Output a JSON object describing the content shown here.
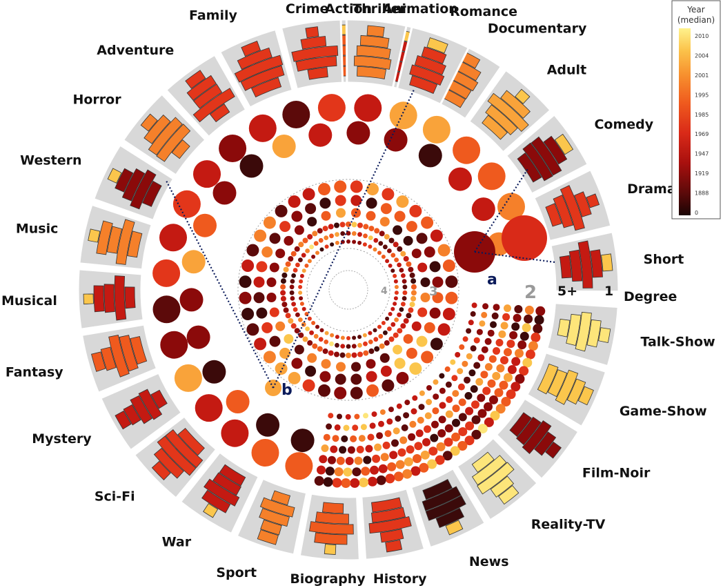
{
  "genres_top": [
    "Action",
    "Animation",
    "Documentary",
    "Adult",
    "Comedy",
    "Drama",
    "Short",
    "Western",
    "Horror",
    "Adventure",
    "Family",
    "Crime",
    "Thriller",
    "Romance"
  ],
  "genres_bottom": [
    "Music",
    "Musical",
    "Fantasy",
    "Mystery",
    "Sci-Fi",
    "War",
    "Sport",
    "Biography",
    "History",
    "News",
    "Reality-TV",
    "Film-Noir",
    "Game-Show",
    "Talk-Show"
  ],
  "degree": {
    "title": "Degree",
    "labels": [
      "5+",
      "1"
    ]
  },
  "rings": [
    "2",
    "3",
    "4"
  ],
  "callouts": [
    "a",
    "b"
  ],
  "legend": {
    "title": [
      "Year",
      "(median)"
    ],
    "ticks": [
      "2010",
      "2004",
      "2001",
      "1995",
      "1985",
      "1969",
      "1947",
      "1919",
      "1888",
      "0"
    ]
  },
  "colors": {
    "ramp": [
      "#3b0a0a",
      "#5c0a0a",
      "#8b0a0a",
      "#c41a12",
      "#e2361a",
      "#ef5a1e",
      "#f5802a",
      "#f9a33a",
      "#fbc64c",
      "#fde57a"
    ],
    "cell_bg": "#d8d8d8",
    "callout_line": "#0a1a5a"
  }
}
